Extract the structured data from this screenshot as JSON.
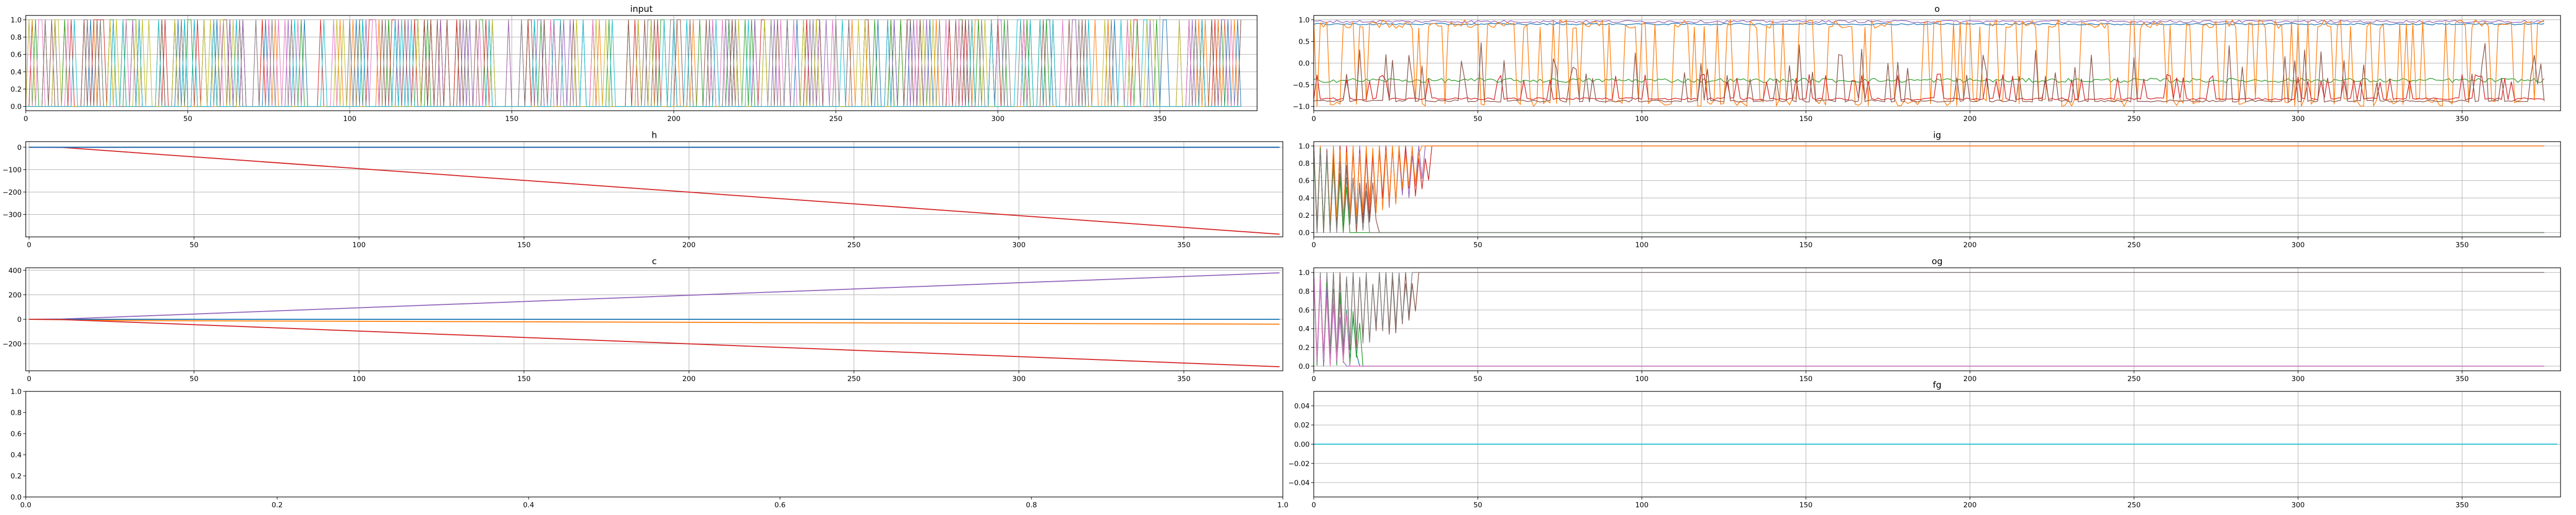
{
  "palette": [
    "#1f77b4",
    "#ff7f0e",
    "#2ca02c",
    "#d62728",
    "#9467bd",
    "#8c564b",
    "#e377c2",
    "#7f7f7f",
    "#bcbd22",
    "#17becf"
  ],
  "chart_data": [
    {
      "id": "input",
      "type": "line",
      "title": "input",
      "grid": true,
      "xlim": [
        0,
        380
      ],
      "ylim": [
        -0.05,
        1.05
      ],
      "xticks": [
        0,
        50,
        100,
        150,
        200,
        250,
        300,
        350
      ],
      "yticks": [
        0.0,
        0.2,
        0.4,
        0.6,
        0.8,
        1.0
      ],
      "xtick_labels": [
        "0",
        "50",
        "100",
        "150",
        "200",
        "250",
        "300",
        "350"
      ],
      "ytick_labels": [
        "0.0",
        "0.2",
        "0.4",
        "0.6",
        "0.8",
        "1.0"
      ],
      "pattern": "binary_spikes",
      "n": 376,
      "n_series": 10
    },
    {
      "id": "o",
      "type": "line",
      "title": "o",
      "grid": true,
      "xlim": [
        0,
        380
      ],
      "ylim": [
        -1.1,
        1.1
      ],
      "xticks": [
        0,
        50,
        100,
        150,
        200,
        250,
        300,
        350
      ],
      "yticks": [
        -1.0,
        -0.5,
        0.0,
        0.5,
        1.0
      ],
      "xtick_labels": [
        "0",
        "50",
        "100",
        "150",
        "200",
        "250",
        "300",
        "350"
      ],
      "ytick_labels": [
        "−1.0",
        "−0.5",
        "0.0",
        "0.5",
        "1.0"
      ],
      "pattern": "oscillating",
      "n": 376,
      "series": [
        {
          "color": "#9467bd",
          "base": 0.96,
          "amp": 0.03,
          "mode": "noise"
        },
        {
          "color": "#1f77b4",
          "base": 0.9,
          "amp": 0.02,
          "mode": "noise"
        },
        {
          "color": "#2ca02c",
          "base": -0.4,
          "amp": 0.05,
          "mode": "noise"
        },
        {
          "color": "#ff7f0e",
          "base": 0.0,
          "amp": 1.0,
          "mode": "square"
        },
        {
          "color": "#d62728",
          "base": -0.85,
          "amp": 0.1,
          "mode": "spike"
        },
        {
          "color": "#8c564b",
          "base": -0.9,
          "amp": 0.5,
          "mode": "spike"
        }
      ]
    },
    {
      "id": "h",
      "type": "line",
      "title": "h",
      "grid": true,
      "xlim": [
        -1,
        380
      ],
      "ylim": [
        -400,
        25
      ],
      "xticks": [
        0,
        50,
        100,
        150,
        200,
        250,
        300,
        350
      ],
      "yticks": [
        0,
        -100,
        -200,
        -300
      ],
      "xtick_labels": [
        "0",
        "50",
        "100",
        "150",
        "200",
        "250",
        "300",
        "350"
      ],
      "ytick_labels": [
        "0",
        "−100",
        "−200",
        "−300"
      ],
      "pattern": "linear",
      "series": [
        {
          "color": "#d62728",
          "x": [
            0,
            10,
            379
          ],
          "y": [
            0,
            -1,
            -388
          ]
        },
        {
          "color": "#8c564b",
          "x": [
            0,
            379
          ],
          "y": [
            0,
            0
          ]
        },
        {
          "color": "#9467bd",
          "x": [
            0,
            379
          ],
          "y": [
            -1,
            -1
          ]
        },
        {
          "color": "#1f77b4",
          "x": [
            0,
            379
          ],
          "y": [
            0,
            0
          ]
        }
      ]
    },
    {
      "id": "ig",
      "type": "line",
      "title": "ig",
      "grid": true,
      "xlim": [
        0,
        380
      ],
      "ylim": [
        -0.05,
        1.05
      ],
      "xticks": [
        0,
        50,
        100,
        150,
        200,
        250,
        300,
        350
      ],
      "yticks": [
        0.0,
        0.2,
        0.4,
        0.6,
        0.8,
        1.0
      ],
      "xtick_labels": [
        "0",
        "50",
        "100",
        "150",
        "200",
        "250",
        "300",
        "350"
      ],
      "ytick_labels": [
        "0.0",
        "0.2",
        "0.4",
        "0.6",
        "0.8",
        "1.0"
      ],
      "pattern": "converge_early",
      "n": 376,
      "series": [
        {
          "color": "#9467bd",
          "final": 1.0,
          "settle": 34
        },
        {
          "color": "#d62728",
          "final": 1.0,
          "settle": 36
        },
        {
          "color": "#ff7f0e",
          "final": 1.0,
          "settle": 33
        },
        {
          "color": "#8c564b",
          "final": 0.0,
          "settle": 20
        },
        {
          "color": "#2ca02c",
          "final": 0.0,
          "settle": 12
        },
        {
          "color": "#7f7f7f",
          "final": 0.0,
          "settle": 18
        }
      ]
    },
    {
      "id": "c",
      "type": "line",
      "title": "c",
      "grid": true,
      "xlim": [
        -1,
        380
      ],
      "ylim": [
        -420,
        420
      ],
      "xticks": [
        0,
        50,
        100,
        150,
        200,
        250,
        300,
        350
      ],
      "yticks": [
        -200,
        0,
        200,
        400
      ],
      "xtick_labels": [
        "0",
        "50",
        "100",
        "150",
        "200",
        "250",
        "300",
        "350"
      ],
      "ytick_labels": [
        "−200",
        "0",
        "200",
        "400"
      ],
      "pattern": "linear",
      "series": [
        {
          "color": "#9467bd",
          "x": [
            0,
            10,
            379
          ],
          "y": [
            0,
            2,
            379
          ]
        },
        {
          "color": "#ff7f0e",
          "x": [
            0,
            30,
            379
          ],
          "y": [
            0,
            -10,
            -40
          ]
        },
        {
          "color": "#8c564b",
          "x": [
            0,
            379
          ],
          "y": [
            0,
            0
          ]
        },
        {
          "color": "#1f77b4",
          "x": [
            0,
            379
          ],
          "y": [
            0,
            0
          ]
        },
        {
          "color": "#d62728",
          "x": [
            0,
            10,
            379
          ],
          "y": [
            0,
            -2,
            -387
          ]
        }
      ]
    },
    {
      "id": "og",
      "type": "line",
      "title": "og",
      "grid": true,
      "xlim": [
        0,
        380
      ],
      "ylim": [
        -0.05,
        1.05
      ],
      "xticks": [
        0,
        50,
        100,
        150,
        200,
        250,
        300,
        350
      ],
      "yticks": [
        0.0,
        0.2,
        0.4,
        0.6,
        0.8,
        1.0
      ],
      "xtick_labels": [
        "0",
        "50",
        "100",
        "150",
        "200",
        "250",
        "300",
        "350"
      ],
      "ytick_labels": [
        "0.0",
        "0.2",
        "0.4",
        "0.6",
        "0.8",
        "1.0"
      ],
      "pattern": "converge_early",
      "n": 376,
      "series": [
        {
          "color": "#8c564b",
          "final": 1.0,
          "settle": 32
        },
        {
          "color": "#7f7f7f",
          "final": 1.0,
          "settle": 30
        },
        {
          "color": "#1f77b4",
          "final": 0.0,
          "settle": 14
        },
        {
          "color": "#2ca02c",
          "final": 0.0,
          "settle": 16
        },
        {
          "color": "#9467bd",
          "final": 0.0,
          "settle": 10
        },
        {
          "color": "#e377c2",
          "final": 0.0,
          "settle": 12
        }
      ]
    },
    {
      "id": "empty",
      "type": "line",
      "title": "",
      "grid": false,
      "xlim": [
        0,
        1
      ],
      "ylim": [
        0,
        1
      ],
      "xticks": [
        0.0,
        0.2,
        0.4,
        0.6,
        0.8,
        1.0
      ],
      "yticks": [
        0.0,
        0.2,
        0.4,
        0.6,
        0.8,
        1.0
      ],
      "xtick_labels": [
        "0.0",
        "0.2",
        "0.4",
        "0.6",
        "0.8",
        "1.0"
      ],
      "ytick_labels": [
        "0.0",
        "0.2",
        "0.4",
        "0.6",
        "0.8",
        "1.0"
      ],
      "pattern": "none"
    },
    {
      "id": "fg",
      "type": "line",
      "title": "fg",
      "grid": true,
      "xlim": [
        0,
        380
      ],
      "ylim": [
        -0.055,
        0.055
      ],
      "xticks": [
        0,
        50,
        100,
        150,
        200,
        250,
        300,
        350
      ],
      "yticks": [
        -0.04,
        -0.02,
        0.0,
        0.02,
        0.04
      ],
      "xtick_labels": [
        "0",
        "50",
        "100",
        "150",
        "200",
        "250",
        "300",
        "350"
      ],
      "ytick_labels": [
        "−0.04",
        "−0.02",
        "0.00",
        "0.02",
        "0.04"
      ],
      "pattern": "linear",
      "series": [
        {
          "color": "#17becf",
          "x": [
            0,
            379
          ],
          "y": [
            0,
            0
          ]
        }
      ]
    }
  ]
}
